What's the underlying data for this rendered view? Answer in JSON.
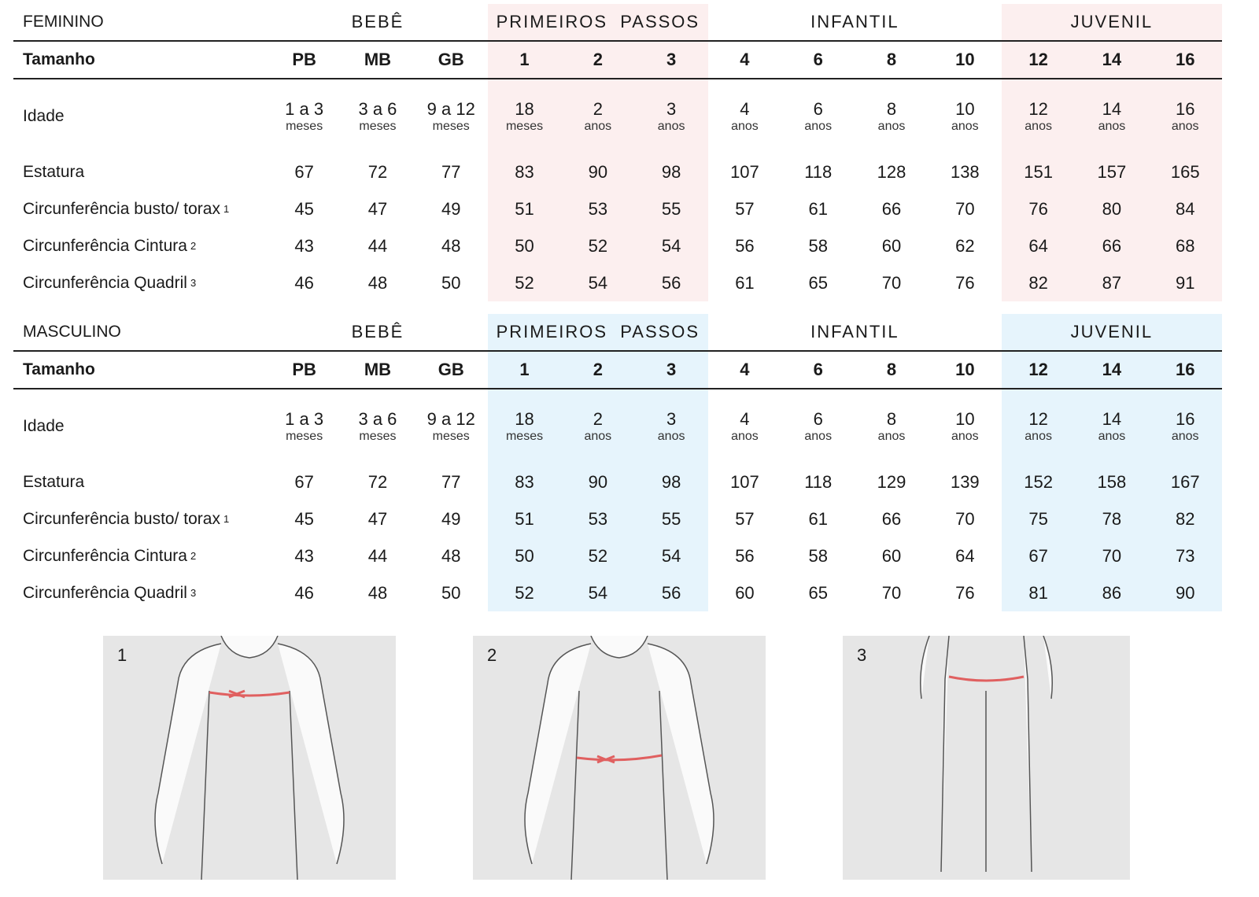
{
  "colors": {
    "female_shade": "#fcefef",
    "male_shade": "#e6f4fc",
    "arrow": "#e06060"
  },
  "groups": [
    "BEBÊ",
    "PRIMEIROS  PASSOS",
    "INFANTIL",
    "JUVENIL"
  ],
  "tables": [
    {
      "title": "FEMININO",
      "shade": "female",
      "size_label": "Tamanho",
      "sizes": [
        "PB",
        "MB",
        "GB",
        "1",
        "2",
        "3",
        "4",
        "6",
        "8",
        "10",
        "12",
        "14",
        "16"
      ],
      "age_label": "Idade",
      "ages": [
        [
          "1 a 3",
          "meses"
        ],
        [
          "3 a 6",
          "meses"
        ],
        [
          "9 a 12",
          "meses"
        ],
        [
          "18",
          "meses"
        ],
        [
          "2",
          "anos"
        ],
        [
          "3",
          "anos"
        ],
        [
          "4",
          "anos"
        ],
        [
          "6",
          "anos"
        ],
        [
          "8",
          "anos"
        ],
        [
          "10",
          "anos"
        ],
        [
          "12",
          "anos"
        ],
        [
          "14",
          "anos"
        ],
        [
          "16",
          "anos"
        ]
      ],
      "rows": [
        {
          "label": "Estatura",
          "sup": "",
          "values": [
            "67",
            "72",
            "77",
            "83",
            "90",
            "98",
            "107",
            "118",
            "128",
            "138",
            "151",
            "157",
            "165"
          ]
        },
        {
          "label": "Circunferência busto/ torax",
          "sup": "1",
          "values": [
            "45",
            "47",
            "49",
            "51",
            "53",
            "55",
            "57",
            "61",
            "66",
            "70",
            "76",
            "80",
            "84"
          ]
        },
        {
          "label": "Circunferência Cintura",
          "sup": "2",
          "values": [
            "43",
            "44",
            "48",
            "50",
            "52",
            "54",
            "56",
            "58",
            "60",
            "62",
            "64",
            "66",
            "68"
          ]
        },
        {
          "label": "Circunferência Quadril",
          "sup": "3",
          "values": [
            "46",
            "48",
            "50",
            "52",
            "54",
            "56",
            "61",
            "65",
            "70",
            "76",
            "82",
            "87",
            "91"
          ]
        }
      ]
    },
    {
      "title": "MASCULINO",
      "shade": "male",
      "size_label": "Tamanho",
      "sizes": [
        "PB",
        "MB",
        "GB",
        "1",
        "2",
        "3",
        "4",
        "6",
        "8",
        "10",
        "12",
        "14",
        "16"
      ],
      "age_label": "Idade",
      "ages": [
        [
          "1 a 3",
          "meses"
        ],
        [
          "3 a 6",
          "meses"
        ],
        [
          "9 a 12",
          "meses"
        ],
        [
          "18",
          "meses"
        ],
        [
          "2",
          "anos"
        ],
        [
          "3",
          "anos"
        ],
        [
          "4",
          "anos"
        ],
        [
          "6",
          "anos"
        ],
        [
          "8",
          "anos"
        ],
        [
          "10",
          "anos"
        ],
        [
          "12",
          "anos"
        ],
        [
          "14",
          "anos"
        ],
        [
          "16",
          "anos"
        ]
      ],
      "rows": [
        {
          "label": "Estatura",
          "sup": "",
          "values": [
            "67",
            "72",
            "77",
            "83",
            "90",
            "98",
            "107",
            "118",
            "129",
            "139",
            "152",
            "158",
            "167"
          ]
        },
        {
          "label": "Circunferência busto/ torax",
          "sup": "1",
          "values": [
            "45",
            "47",
            "49",
            "51",
            "53",
            "55",
            "57",
            "61",
            "66",
            "70",
            "75",
            "78",
            "82"
          ]
        },
        {
          "label": "Circunferência Cintura",
          "sup": "2",
          "values": [
            "43",
            "44",
            "48",
            "50",
            "52",
            "54",
            "56",
            "58",
            "60",
            "64",
            "67",
            "70",
            "73"
          ]
        },
        {
          "label": "Circunferência Quadril",
          "sup": "3",
          "values": [
            "46",
            "48",
            "50",
            "52",
            "54",
            "56",
            "60",
            "65",
            "70",
            "76",
            "81",
            "86",
            "90"
          ]
        }
      ]
    }
  ],
  "figures": [
    {
      "number": "1",
      "measure": "busto/torax"
    },
    {
      "number": "2",
      "measure": "cintura"
    },
    {
      "number": "3",
      "measure": "quadril"
    }
  ]
}
